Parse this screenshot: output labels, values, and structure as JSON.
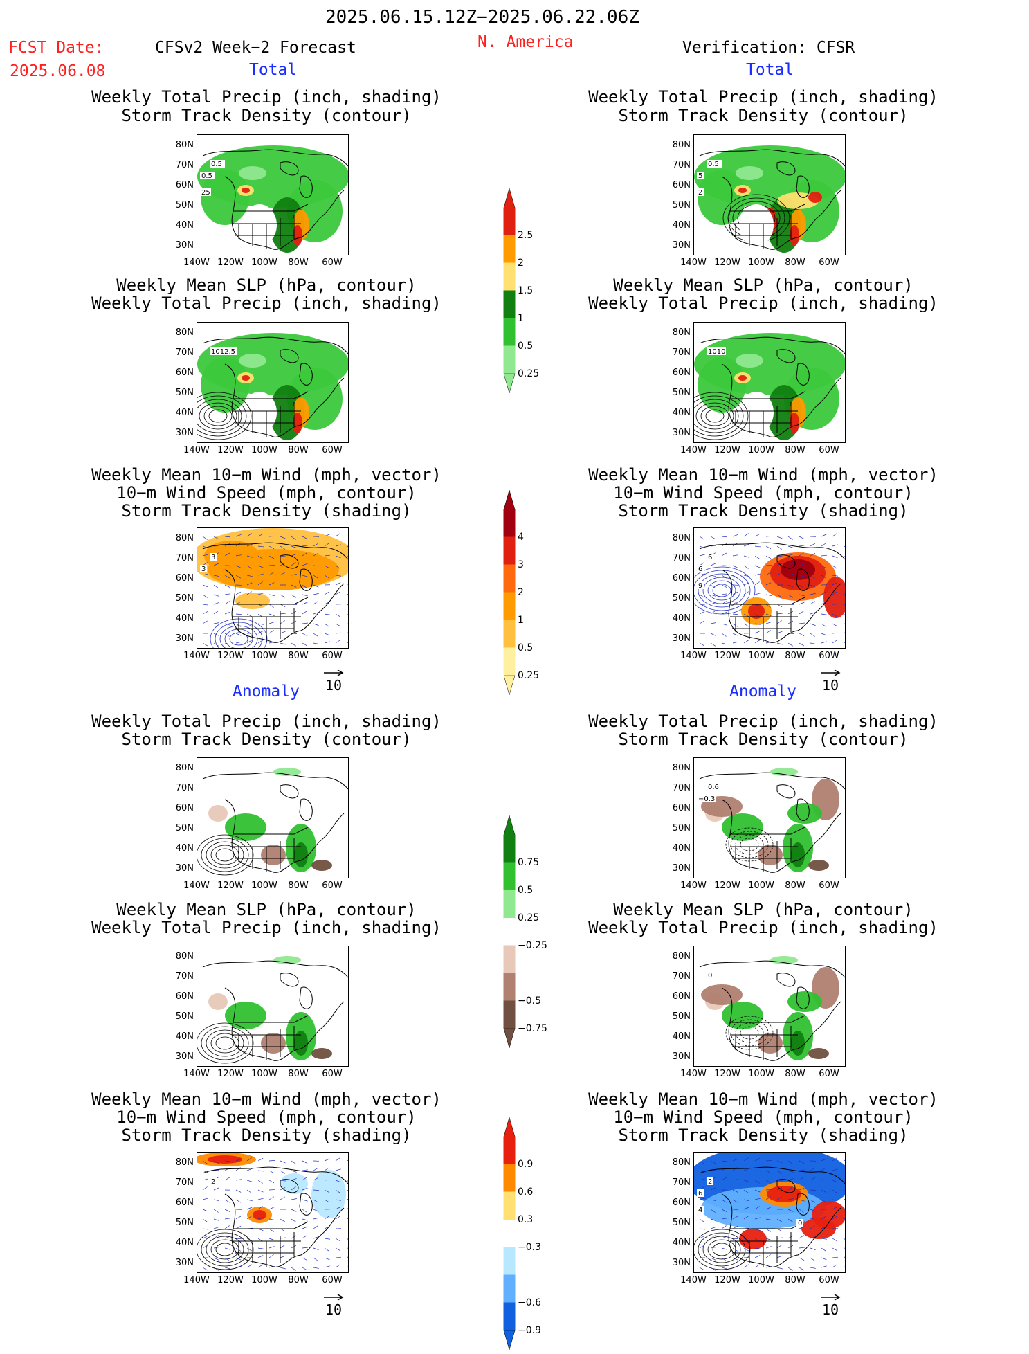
{
  "header": {
    "period": "2025.06.15.12Z−2025.06.22.06Z",
    "fcst_label": "FCST Date:",
    "fcst_date": "2025.06.08",
    "model": "CFSv2 Week−2 Forecast",
    "region": "N. America",
    "verification": "Verification: CFSR"
  },
  "sections": {
    "total": "Total",
    "anomaly": "Anomaly"
  },
  "panel_titles": {
    "precip_storm": [
      "Weekly Total Precip (inch, shading)",
      "Storm Track Density (contour)"
    ],
    "slp_precip": [
      "Weekly Mean SLP (hPa, contour)",
      "Weekly Total Precip (inch, shading)"
    ],
    "wind_storm": [
      "Weekly Mean 10−m Wind (mph, vector)",
      "10−m Wind Speed (mph, contour)",
      "Storm Track Density (shading)"
    ]
  },
  "axes": {
    "lat": [
      "80N",
      "70N",
      "60N",
      "50N",
      "40N",
      "30N"
    ],
    "lon": [
      "140W",
      "120W",
      "100W",
      "80W",
      "60W"
    ]
  },
  "vector_ref": "10",
  "colorbars": {
    "precip_total": {
      "labels": [
        "2.5",
        "2",
        "1.5",
        "1",
        "0.5",
        "0.25"
      ],
      "colors": [
        "#e02010",
        "#ff9a00",
        "#ffe070",
        "#108010",
        "#30c030",
        "#90e890"
      ]
    },
    "storm_total": {
      "labels": [
        "4",
        "3",
        "2",
        "1",
        "0.5",
        "0.25"
      ],
      "colors": [
        "#a00010",
        "#e02010",
        "#ff6a10",
        "#ff9a00",
        "#ffc040",
        "#fff0a0"
      ]
    },
    "precip_anom": {
      "labels": [
        "0.75",
        "0.5",
        "0.25",
        "−0.25",
        "−0.5",
        "−0.75"
      ],
      "colors": [
        "#108010",
        "#30c030",
        "#90e890",
        "#ffffff",
        "#e8c8b8",
        "#b08070",
        "#705040"
      ]
    },
    "storm_anom": {
      "labels": [
        "0.9",
        "0.6",
        "0.3",
        "−0.3",
        "−0.6",
        "−0.9"
      ],
      "colors": [
        "#e82010",
        "#ff8a00",
        "#ffe070",
        "#ffffff",
        "#b8e8ff",
        "#60b0ff",
        "#1060e0"
      ]
    }
  },
  "contour_labels": {
    "p1": [
      "0.5",
      "0.5",
      "25"
    ],
    "p2": [
      "1012.5"
    ],
    "p3": [
      "3",
      "3"
    ],
    "p7": [
      "0.5",
      "5",
      "2"
    ],
    "p8": [
      "1010"
    ],
    "p9": [
      "6",
      "6",
      "9"
    ],
    "p10": [
      "0.6",
      "−0.3"
    ],
    "p11": [
      "0"
    ],
    "p6": [
      "2"
    ],
    "p12": [
      "2",
      "6",
      "4",
      "0"
    ]
  }
}
